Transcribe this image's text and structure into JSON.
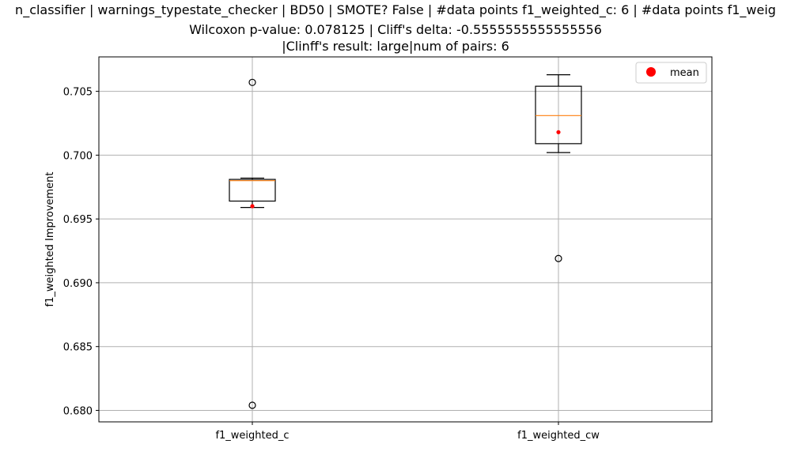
{
  "chart_data": {
    "type": "box",
    "title_lines": [
      "n_classifier | warnings_typestate_checker | BD50 | SMOTE? False | #data points f1_weighted_c: 6 | #data points f1_weig",
      "Wilcoxon p-value: 0.078125 | Cliff's delta: -0.5555555555555556",
      "|Clinff's result: large|num of pairs: 6"
    ],
    "ylabel": "f1_weighted Improvement",
    "ylim": [
      0.6791,
      0.7077
    ],
    "yticks": [
      0.68,
      0.685,
      0.69,
      0.695,
      0.7,
      0.705
    ],
    "ytick_labels": [
      "0.680",
      "0.685",
      "0.690",
      "0.695",
      "0.700",
      "0.705"
    ],
    "grid": true,
    "legend": {
      "placement": "top-right",
      "entries": [
        {
          "label": "mean",
          "color": "#ff0000"
        }
      ]
    },
    "colors": {
      "box": "#000000",
      "median": "#ff7f0e",
      "mean": "#ff0000",
      "grid": "#b0b0b0"
    },
    "boxes": [
      {
        "category": "f1_weighted_c",
        "whisker_low": 0.6959,
        "q1": 0.6964,
        "median": 0.698,
        "q3": 0.6981,
        "whisker_high": 0.6982,
        "mean": 0.696,
        "outliers": [
          0.7057,
          0.6804
        ]
      },
      {
        "category": "f1_weighted_cw",
        "whisker_low": 0.7002,
        "q1": 0.7009,
        "median": 0.7031,
        "q3": 0.7054,
        "whisker_high": 0.7063,
        "mean": 0.7018,
        "outliers": [
          0.6919
        ]
      }
    ]
  }
}
